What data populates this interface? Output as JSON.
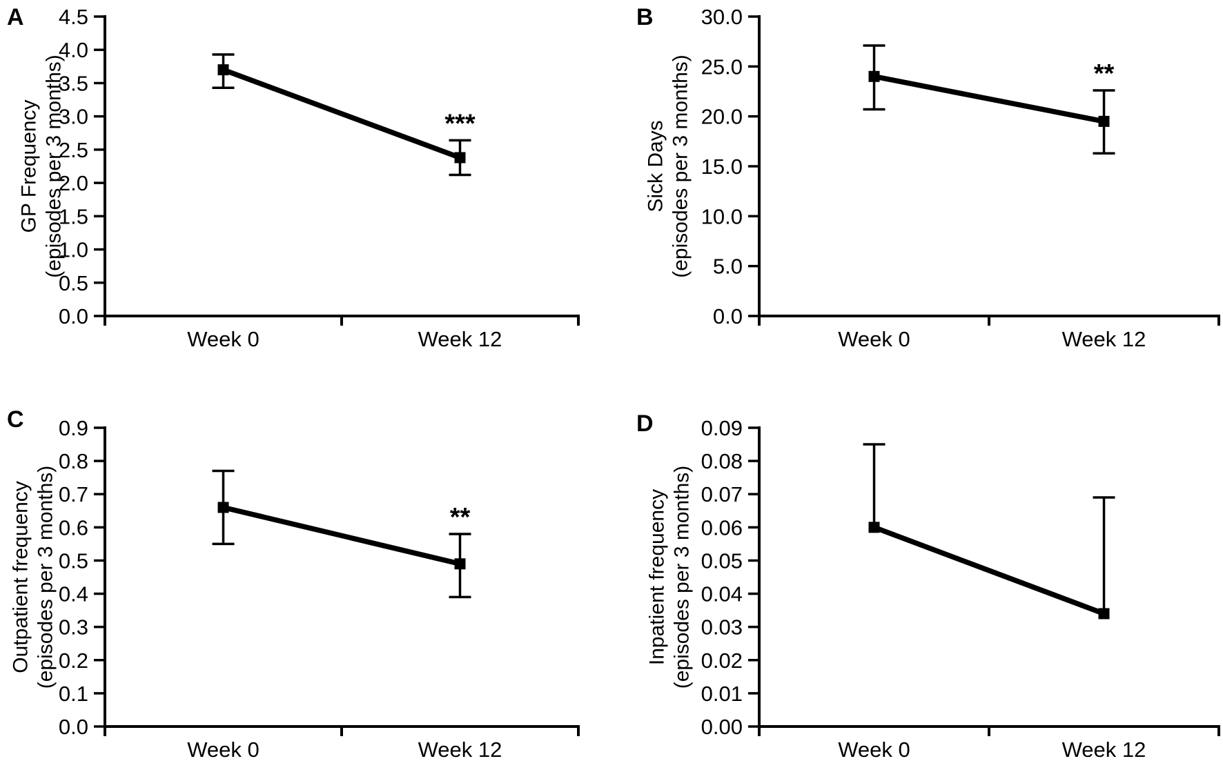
{
  "colors": {
    "foreground": "#000000",
    "background": "#ffffff"
  },
  "chart_data": [
    {
      "type": "line",
      "panel_label": "A",
      "ylabel_line1": "GP Frequency",
      "ylabel_line2": "(episodes per 3 months)",
      "categories": [
        "Week 0",
        "Week 12"
      ],
      "values": [
        3.7,
        2.38
      ],
      "err_low": [
        3.43,
        2.12
      ],
      "err_high": [
        3.93,
        2.64
      ],
      "significance": [
        "",
        "***"
      ],
      "ylim": [
        0.0,
        4.5
      ],
      "ytick_step": 0.5,
      "ytick_decimals": 1,
      "grid": false,
      "marker": "square",
      "legend": "none"
    },
    {
      "type": "line",
      "panel_label": "B",
      "ylabel_line1": "Sick Days",
      "ylabel_line2": "(episodes per 3 months)",
      "categories": [
        "Week 0",
        "Week 12"
      ],
      "values": [
        24.0,
        19.5
      ],
      "err_low": [
        20.7,
        16.3
      ],
      "err_high": [
        27.1,
        22.6
      ],
      "significance": [
        "",
        "**"
      ],
      "ylim": [
        0.0,
        30.0
      ],
      "ytick_step": 5.0,
      "ytick_decimals": 1,
      "grid": false,
      "marker": "square",
      "legend": "none"
    },
    {
      "type": "line",
      "panel_label": "C",
      "ylabel_line1": "Outpatient frequency",
      "ylabel_line2": "(episodes per 3 months)",
      "categories": [
        "Week 0",
        "Week 12"
      ],
      "values": [
        0.66,
        0.49
      ],
      "err_low": [
        0.55,
        0.39
      ],
      "err_high": [
        0.77,
        0.58
      ],
      "significance": [
        "",
        "**"
      ],
      "ylim": [
        0.0,
        0.9
      ],
      "ytick_step": 0.1,
      "ytick_decimals": 1,
      "grid": false,
      "marker": "square",
      "legend": "none"
    },
    {
      "type": "line",
      "panel_label": "D",
      "ylabel_line1": "Inpatient frequency",
      "ylabel_line2": "(episodes per 3 months)",
      "categories": [
        "Week 0",
        "Week 12"
      ],
      "values": [
        0.06,
        0.034
      ],
      "err_low": [
        null,
        null
      ],
      "err_high": [
        0.085,
        0.069
      ],
      "significance": [
        "",
        ""
      ],
      "ylim": [
        0.0,
        0.09
      ],
      "ytick_step": 0.01,
      "ytick_decimals": 2,
      "grid": false,
      "marker": "square",
      "legend": "none"
    }
  ]
}
